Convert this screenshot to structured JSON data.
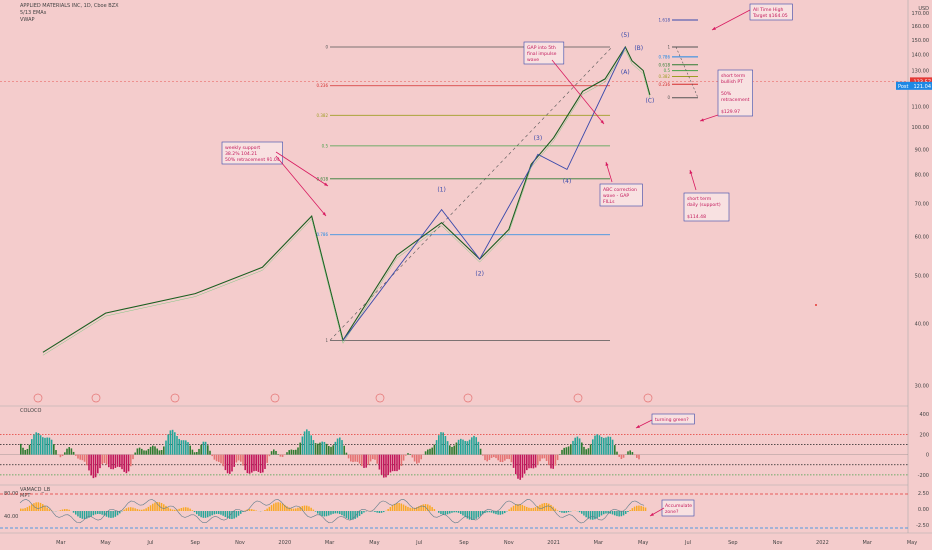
{
  "header": {
    "symbol_line": "APPLIED MATERIALS INC, 1D, Cboe BZX",
    "ema_line": "5/13 EMAs",
    "vwap_line": "VWAP"
  },
  "price_axis": {
    "currency": "USD",
    "ticks": [
      "170.00",
      "160.00",
      "150.00",
      "140.00",
      "130.00",
      "120.00",
      "110.00",
      "100.00",
      "90.00",
      "80.00",
      "70.00",
      "60.00",
      "50.00",
      "40.00",
      "30.00"
    ],
    "last_price": "123.57",
    "post_label": "Post",
    "post_price": "121.04"
  },
  "time_axis": {
    "ticks": [
      "Mar",
      "May",
      "Jul",
      "Sep",
      "Nov",
      "2020",
      "Mar",
      "May",
      "Jul",
      "Sep",
      "Nov",
      "2021",
      "Mar",
      "May",
      "Jul",
      "Sep",
      "Nov",
      "2022",
      "Mar",
      "May"
    ]
  },
  "fib_main": [
    {
      "label": "0",
      "price": 145
    },
    {
      "label": "0.236",
      "price": 121.1
    },
    {
      "label": "0.382",
      "price": 105.5
    },
    {
      "label": "0.5",
      "price": 91.5
    },
    {
      "label": "0.618",
      "price": 78.5
    },
    {
      "label": "0.786",
      "price": 60.5
    },
    {
      "label": "1",
      "price": 37
    }
  ],
  "fib_small": [
    {
      "label": "1.618",
      "price": 164.5
    },
    {
      "label": "1",
      "price": 145
    },
    {
      "label": "0.786",
      "price": 138.5
    },
    {
      "label": "0.618",
      "price": 133.5
    },
    {
      "label": "0.5",
      "price": 129.9
    },
    {
      "label": "0.382",
      "price": 126.4
    },
    {
      "label": "0.236",
      "price": 121.9
    },
    {
      "label": "0",
      "price": 114.5
    }
  ],
  "wave_labels": [
    "(1)",
    "(2)",
    "(3)",
    "(4)",
    "(5)",
    "(A)",
    "(B)",
    "(C)"
  ],
  "annotations": {
    "weekly_support": [
      "weekly support",
      "38.2% 104.21",
      "50% retracement 91.04"
    ],
    "gap_5th": [
      "GAP into 5th",
      "final impulse",
      "wave"
    ],
    "ath_target": [
      "All Time High",
      "Target $164.05"
    ],
    "bullish_pt": [
      "short term",
      "bullish PT",
      "",
      "50%",
      "retracement",
      "",
      "$129.97"
    ],
    "abc": [
      "ABC correction",
      "wave - GAP",
      "FILLs"
    ],
    "daily_support": [
      "short term",
      "daily (support)",
      "",
      "$114.48"
    ],
    "turning_green": [
      "turning green?"
    ],
    "accumulate": [
      "Accumulate",
      "zone?"
    ]
  },
  "panel_coloco": {
    "name": "COLOCO",
    "ticks": [
      "400",
      "200",
      "0",
      "-200"
    ]
  },
  "panel_vamacd": {
    "name": "VAMACD_LB",
    "sub": "MPT",
    "left_ticks": [
      "80.00",
      "40.00"
    ],
    "right_ticks": [
      "2.50",
      "0.00",
      "-2.50"
    ]
  },
  "events_count": 8,
  "chart_data": {
    "type": "line",
    "title": "APPLIED MATERIALS INC, 1D, Cboe BZX",
    "xlabel": "",
    "ylabel": "",
    "ylim": [
      27,
      178
    ],
    "x": [
      "2019-02",
      "2019-05",
      "2019-09",
      "2019-12",
      "2020-02",
      "2020-03-18",
      "2020-06",
      "2020-08",
      "2020-09-22",
      "2020-11",
      "2020-12",
      "2021-01",
      "2021-02",
      "2021-03",
      "2021-04-05",
      "2021-04-15",
      "2021-05-01",
      "2021-05-12"
    ],
    "series": [
      {
        "values": [
          35,
          42,
          46,
          52,
          66,
          37,
          55,
          64,
          54,
          62,
          84,
          95,
          118,
          125,
          145,
          136,
          130,
          116
        ]
      }
    ],
    "colors": {
      "price": "#2e7d32",
      "fib": "#222",
      "bars_up": "#1b7a2e",
      "bars_dn": "#d32f2f"
    }
  }
}
